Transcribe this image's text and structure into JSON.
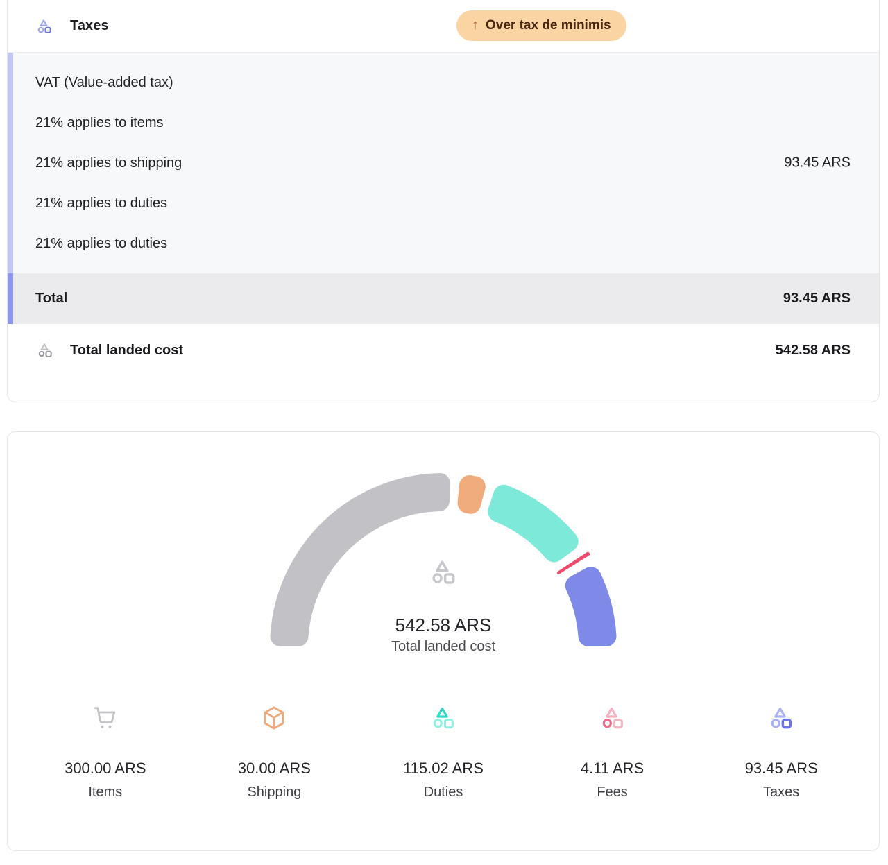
{
  "tax_card": {
    "header": {
      "title": "Taxes",
      "badge": {
        "arrow": "↑",
        "label": "Over tax de minimis"
      }
    },
    "vat_block": {
      "lines": [
        "VAT (Value-added tax)",
        "21% applies to items",
        "21% applies to shipping",
        "21% applies to duties",
        "21% applies to duties"
      ],
      "amount": "93.45 ARS"
    },
    "total_row": {
      "label": "Total",
      "amount": "93.45 ARS"
    },
    "landed_row": {
      "label": "Total landed cost",
      "amount": "542.58 ARS"
    }
  },
  "gauge_card": {
    "center": {
      "value": "542.58 ARS",
      "label": "Total landed cost"
    },
    "legend": [
      {
        "amount": "300.00 ARS",
        "label": "Items",
        "icon": "cart-icon"
      },
      {
        "amount": "30.00 ARS",
        "label": "Shipping",
        "icon": "package-icon"
      },
      {
        "amount": "115.02 ARS",
        "label": "Duties",
        "icon": "shapes-icon-teal"
      },
      {
        "amount": "4.11 ARS",
        "label": "Fees",
        "icon": "shapes-icon-pink"
      },
      {
        "amount": "93.45 ARS",
        "label": "Taxes",
        "icon": "shapes-icon-indigo"
      }
    ]
  },
  "chart_data": {
    "type": "pie",
    "variant": "half-donut-gauge",
    "title": "Total landed cost breakdown",
    "center_value": "542.58 ARS",
    "center_label": "Total landed cost",
    "unit": "ARS",
    "total": 542.58,
    "segments": [
      {
        "label": "Items",
        "value": 300.0,
        "color": "#c1c1c6"
      },
      {
        "label": "Shipping",
        "value": 30.0,
        "color": "#f0ab7c"
      },
      {
        "label": "Duties",
        "value": 115.02,
        "color": "#7ce9d9"
      },
      {
        "label": "Fees",
        "value": 4.11,
        "color": "#ee4b6c"
      },
      {
        "label": "Taxes",
        "value": 93.45,
        "color": "#7f89e8"
      }
    ],
    "layout": {
      "start_angle_deg": 180,
      "end_angle_deg": 0,
      "gap_deg": 3.2,
      "inner_radius": 195,
      "outer_radius": 250,
      "legend_position": "bottom"
    }
  },
  "colors": {
    "badge_bg": "#fad4a2",
    "badge_text": "#48250f",
    "vat_bg": "#f7f8fa",
    "vat_stripe": "#c0c7f3",
    "total_bg": "#ebebed",
    "total_stripe": "#8e97ef",
    "card_border": "#e4e4e7",
    "accent_indigo": "#6872e5"
  }
}
